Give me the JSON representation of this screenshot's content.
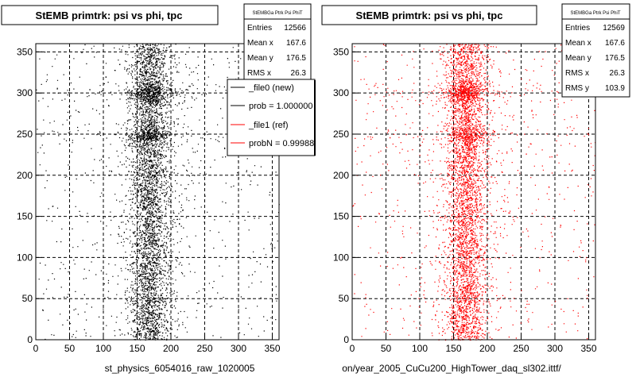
{
  "chart_data": [
    {
      "type": "scatter",
      "title": "StEMB primtrk: psi vs phi, tpc",
      "xlabel": "st_physics_6054016_raw_1020005",
      "ylabel": "",
      "xlim": [
        0,
        360
      ],
      "ylim": [
        0,
        360
      ],
      "x_ticks": [
        "0",
        "50",
        "100",
        "150",
        "200",
        "250",
        "300",
        "350"
      ],
      "y_ticks": [
        "0",
        "50",
        "100",
        "150",
        "200",
        "250",
        "300",
        "350"
      ],
      "grid": true,
      "marker_color": "#000000",
      "density_note": "dense band x≈140–210, peak near x≈165",
      "stats": {
        "header": "StEMBGa Ptrk Psi PhiT",
        "entries_label": "Entries",
        "entries": "12566",
        "meanx_label": "Mean x",
        "meanx": "167.6",
        "meany_label": "Mean y",
        "meany": "176.5",
        "rmsx_label": "RMS x",
        "rmsx": "26.3"
      },
      "legend": {
        "placement": "top-right",
        "entries": [
          {
            "label": "_file0 (new)",
            "color": "#000000"
          },
          {
            "label": "prob = 1.000000",
            "color": "#000000"
          },
          {
            "label": "_file1 (ref)",
            "color": "#ff0000"
          },
          {
            "label": "probN = 0.99988",
            "color": "#ff0000"
          }
        ]
      }
    },
    {
      "type": "scatter",
      "title": "StEMB primtrk: psi vs phi, tpc",
      "xlabel": "on/year_2005_CuCu200_HighTower_daq_sl302.ittf/",
      "ylabel": "",
      "xlim": [
        0,
        360
      ],
      "ylim": [
        0,
        360
      ],
      "x_ticks": [
        "0",
        "50",
        "100",
        "150",
        "200",
        "250",
        "300",
        "350"
      ],
      "y_ticks": [
        "0",
        "50",
        "100",
        "150",
        "200",
        "250",
        "300",
        "350"
      ],
      "grid": true,
      "marker_color": "#ff0000",
      "density_note": "dense band x≈140–210, peak near x≈165",
      "stats": {
        "header": "StEMBGa Ptrk Psi PhiT",
        "entries_label": "Entries",
        "entries": "12569",
        "meanx_label": "Mean x",
        "meanx": "167.6",
        "meany_label": "Mean y",
        "meany": "176.5",
        "rmsx_label": "RMS x",
        "rmsx": "26.3",
        "rmsy_label": "RMS y",
        "rmsy": "103.9"
      }
    }
  ]
}
